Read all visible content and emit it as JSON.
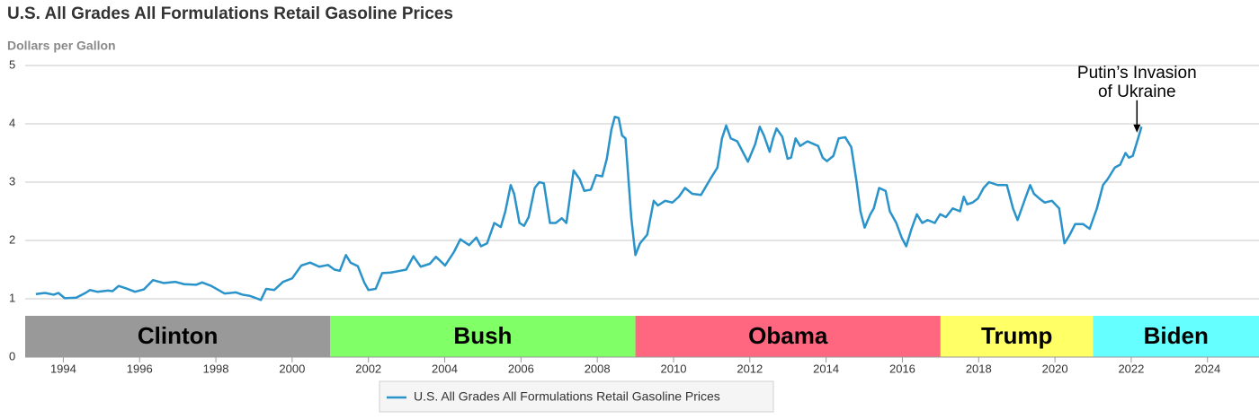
{
  "chart_data": {
    "type": "line",
    "title": "U.S. All Grades All Formulations Retail Gasoline Prices",
    "ylabel": "Dollars per Gallon",
    "x": [
      1993.28,
      1993.52,
      1993.75,
      1993.87,
      1994.04,
      1994.34,
      1994.58,
      1994.7,
      1994.89,
      1995.17,
      1995.29,
      1995.45,
      1995.64,
      1995.88,
      1996.11,
      1996.35,
      1996.63,
      1996.94,
      1997.17,
      1997.48,
      1997.64,
      1997.88,
      1998.23,
      1998.52,
      1998.7,
      1998.89,
      1999.18,
      1999.32,
      1999.53,
      1999.76,
      2000.0,
      2000.24,
      2000.47,
      2000.71,
      2000.94,
      2001.11,
      2001.25,
      2001.41,
      2001.53,
      2001.72,
      2001.89,
      2002.0,
      2002.19,
      2002.36,
      2002.59,
      2002.83,
      2002.99,
      2003.18,
      2003.37,
      2003.61,
      2003.77,
      2004.01,
      2004.24,
      2004.41,
      2004.64,
      2004.83,
      2004.95,
      2005.11,
      2005.3,
      2005.47,
      2005.59,
      2005.73,
      2005.82,
      2005.96,
      2006.08,
      2006.2,
      2006.36,
      2006.48,
      2006.6,
      2006.76,
      2006.91,
      2007.07,
      2007.19,
      2007.38,
      2007.54,
      2007.66,
      2007.83,
      2007.97,
      2008.13,
      2008.25,
      2008.37,
      2008.46,
      2008.56,
      2008.65,
      2008.74,
      2008.89,
      2009.0,
      2009.12,
      2009.31,
      2009.48,
      2009.59,
      2009.78,
      2009.97,
      2010.14,
      2010.3,
      2010.49,
      2010.72,
      2010.96,
      2011.15,
      2011.27,
      2011.38,
      2011.5,
      2011.67,
      2011.79,
      2011.95,
      2012.14,
      2012.26,
      2012.37,
      2012.52,
      2012.61,
      2012.7,
      2012.85,
      2012.99,
      2013.08,
      2013.2,
      2013.32,
      2013.51,
      2013.79,
      2013.91,
      2014.02,
      2014.19,
      2014.33,
      2014.5,
      2014.66,
      2014.8,
      2014.9,
      2015.01,
      2015.16,
      2015.25,
      2015.39,
      2015.56,
      2015.67,
      2015.84,
      2015.98,
      2016.1,
      2016.24,
      2016.38,
      2016.52,
      2016.66,
      2016.85,
      2016.99,
      2017.14,
      2017.32,
      2017.51,
      2017.61,
      2017.7,
      2017.84,
      2017.98,
      2018.13,
      2018.27,
      2018.5,
      2018.74,
      2018.9,
      2019.02,
      2019.21,
      2019.35,
      2019.45,
      2019.59,
      2019.73,
      2019.92,
      2020.11,
      2020.25,
      2020.39,
      2020.53,
      2020.74,
      2020.91,
      2021.1,
      2021.26,
      2021.38,
      2021.57,
      2021.71,
      2021.85,
      2021.94,
      2022.04,
      2022.18,
      2022.27
    ],
    "series": [
      {
        "name": "U.S. All Grades All Formulations Retail Gasoline Prices",
        "color": "#2a93c9",
        "values": [
          1.08,
          1.1,
          1.07,
          1.1,
          1.01,
          1.02,
          1.1,
          1.15,
          1.12,
          1.14,
          1.13,
          1.22,
          1.18,
          1.12,
          1.16,
          1.32,
          1.27,
          1.29,
          1.25,
          1.24,
          1.28,
          1.22,
          1.09,
          1.11,
          1.07,
          1.05,
          0.98,
          1.17,
          1.15,
          1.29,
          1.35,
          1.57,
          1.62,
          1.55,
          1.58,
          1.5,
          1.48,
          1.75,
          1.62,
          1.56,
          1.28,
          1.15,
          1.17,
          1.44,
          1.45,
          1.48,
          1.5,
          1.73,
          1.55,
          1.6,
          1.72,
          1.57,
          1.8,
          2.02,
          1.92,
          2.05,
          1.9,
          1.95,
          2.3,
          2.23,
          2.5,
          2.95,
          2.8,
          2.3,
          2.25,
          2.4,
          2.9,
          3.0,
          2.98,
          2.3,
          2.3,
          2.38,
          2.3,
          3.2,
          3.05,
          2.85,
          2.87,
          3.12,
          3.1,
          3.4,
          3.9,
          4.12,
          4.1,
          3.8,
          3.75,
          2.4,
          1.75,
          1.95,
          2.1,
          2.68,
          2.6,
          2.68,
          2.65,
          2.75,
          2.9,
          2.8,
          2.78,
          3.05,
          3.25,
          3.75,
          3.97,
          3.75,
          3.7,
          3.55,
          3.35,
          3.65,
          3.95,
          3.8,
          3.52,
          3.75,
          3.92,
          3.78,
          3.4,
          3.42,
          3.75,
          3.62,
          3.7,
          3.62,
          3.42,
          3.36,
          3.45,
          3.75,
          3.77,
          3.6,
          3.0,
          2.5,
          2.22,
          2.45,
          2.55,
          2.9,
          2.85,
          2.5,
          2.3,
          2.05,
          1.9,
          2.2,
          2.45,
          2.3,
          2.35,
          2.3,
          2.45,
          2.4,
          2.55,
          2.5,
          2.75,
          2.62,
          2.65,
          2.72,
          2.9,
          3.0,
          2.95,
          2.95,
          2.55,
          2.35,
          2.7,
          2.95,
          2.8,
          2.72,
          2.65,
          2.68,
          2.55,
          1.95,
          2.1,
          2.28,
          2.28,
          2.2,
          2.55,
          2.95,
          3.05,
          3.25,
          3.3,
          3.5,
          3.42,
          3.45,
          3.75,
          3.95
        ]
      }
    ],
    "xlim": [
      1993,
      2025.35
    ],
    "xticks": [
      1994,
      1996,
      1998,
      2000,
      2002,
      2004,
      2006,
      2008,
      2010,
      2012,
      2014,
      2016,
      2018,
      2020,
      2022,
      2024
    ],
    "ylim": [
      0,
      5
    ],
    "yticks": [
      0,
      1,
      2,
      3,
      4,
      5
    ],
    "grid": true,
    "bands": [
      {
        "label": "Clinton",
        "start": 1993,
        "end": 2001,
        "color": "#999999"
      },
      {
        "label": "Bush",
        "start": 2001,
        "end": 2009,
        "color": "#80ff66"
      },
      {
        "label": "Obama",
        "start": 2009,
        "end": 2017,
        "color": "#ff6680"
      },
      {
        "label": "Trump",
        "start": 2017,
        "end": 2021,
        "color": "#ffff66"
      },
      {
        "label": "Biden",
        "start": 2021,
        "end": 2025.35,
        "color": "#66ffff"
      }
    ],
    "annotation": {
      "lines": [
        "Putin’s Invasion",
        "of Ukraine"
      ],
      "x": 2022.15,
      "y": 3.85
    }
  }
}
